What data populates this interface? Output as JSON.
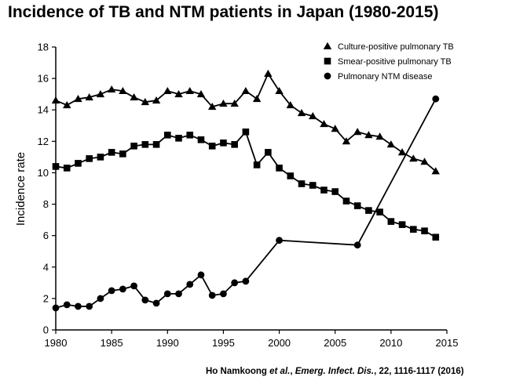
{
  "chart_data": {
    "type": "line",
    "title": "Incidence of TB and NTM patients in Japan (1980-2015)",
    "xlabel": "",
    "ylabel": "Incidence rate",
    "xlim": [
      1980,
      2015
    ],
    "ylim": [
      0,
      18
    ],
    "xticks": [
      1980,
      1985,
      1990,
      1995,
      2000,
      2005,
      2010,
      2015
    ],
    "yticks": [
      0,
      2,
      4,
      6,
      8,
      10,
      12,
      14,
      16,
      18
    ],
    "grid": false,
    "legend_position": "top-right",
    "series": [
      {
        "name": "Culture-positive pulmonary TB",
        "marker": "triangle",
        "x": [
          1980,
          1981,
          1982,
          1983,
          1984,
          1985,
          1986,
          1987,
          1988,
          1989,
          1990,
          1991,
          1992,
          1993,
          1994,
          1995,
          1996,
          1997,
          1998,
          1999,
          2000,
          2001,
          2002,
          2003,
          2004,
          2005,
          2006,
          2007,
          2008,
          2009,
          2010,
          2011,
          2012,
          2013,
          2014
        ],
        "values": [
          14.6,
          14.3,
          14.7,
          14.8,
          15.0,
          15.3,
          15.2,
          14.8,
          14.5,
          14.6,
          15.2,
          15.0,
          15.2,
          15.0,
          14.2,
          14.4,
          14.4,
          15.2,
          14.7,
          16.3,
          15.2,
          14.3,
          13.8,
          13.6,
          13.1,
          12.8,
          12.0,
          12.6,
          12.4,
          12.3,
          11.8,
          11.3,
          10.9,
          10.7,
          10.1
        ]
      },
      {
        "name": "Smear-positive pulmonary TB",
        "marker": "square",
        "x": [
          1980,
          1981,
          1982,
          1983,
          1984,
          1985,
          1986,
          1987,
          1988,
          1989,
          1990,
          1991,
          1992,
          1993,
          1994,
          1995,
          1996,
          1997,
          1998,
          1999,
          2000,
          2001,
          2002,
          2003,
          2004,
          2005,
          2006,
          2007,
          2008,
          2009,
          2010,
          2011,
          2012,
          2013,
          2014
        ],
        "values": [
          10.4,
          10.3,
          10.6,
          10.9,
          11.0,
          11.3,
          11.2,
          11.7,
          11.8,
          11.8,
          12.4,
          12.2,
          12.4,
          12.1,
          11.7,
          11.9,
          11.8,
          12.6,
          10.5,
          11.3,
          10.3,
          9.8,
          9.3,
          9.2,
          8.9,
          8.8,
          8.2,
          7.9,
          7.6,
          7.5,
          6.9,
          6.7,
          6.4,
          6.3,
          5.9
        ]
      },
      {
        "name": "Pulmonary NTM disease",
        "marker": "circle",
        "x": [
          1980,
          1981,
          1982,
          1983,
          1984,
          1985,
          1986,
          1987,
          1988,
          1989,
          1990,
          1991,
          1992,
          1993,
          1994,
          1995,
          1996,
          1997,
          2000,
          2007,
          2014
        ],
        "values": [
          1.4,
          1.6,
          1.5,
          1.5,
          2.0,
          2.5,
          2.6,
          2.8,
          1.9,
          1.7,
          2.3,
          2.3,
          2.9,
          3.5,
          2.2,
          2.3,
          3.0,
          3.1,
          5.7,
          5.4,
          14.7
        ]
      }
    ]
  },
  "citation": {
    "author_prefix": "Ho Namkoong ",
    "author_etal": "et al.",
    "journal": "Emerg. Infect. Dis.",
    "details": " 22, 1116-1117 (2016)"
  }
}
